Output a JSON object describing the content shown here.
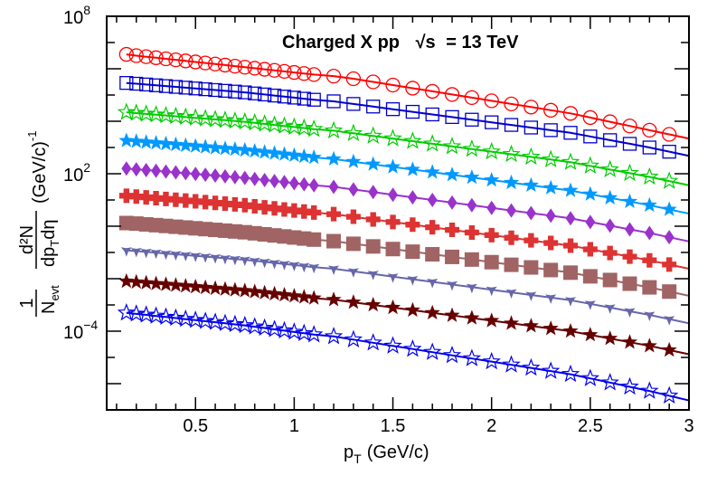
{
  "chart_data": {
    "type": "scatter",
    "title": "Charged X pp  √s = 13 TeV",
    "title_prefix": "Charged X pp",
    "title_sqrt": "√s",
    "title_suffix": "= 13 TeV",
    "xlabel": "p_T (GeV/c)",
    "xlabel_main": "p",
    "xlabel_sub": "T",
    "xlabel_unit": "(GeV/c)",
    "ylabel_parts": {
      "frac_num": "1",
      "frac_den_main": "N",
      "frac_den_sub": "evt",
      "d2N": "d²N",
      "dpt": "dp",
      "dpt_sub": "T",
      "deta": "dη",
      "unit": "(GeV/c)",
      "unit_exp": "-1"
    },
    "xlim": [
      0.05,
      3.0
    ],
    "ylim_log10": [
      -7,
      8
    ],
    "y_scale": "log",
    "grid": false,
    "x_ticks": [
      "0.5",
      "1",
      "1.5",
      "2",
      "2.5",
      "3"
    ],
    "y_ticks": [
      {
        "base": "10",
        "exp": "8"
      },
      {
        "base": "10",
        "exp": "2"
      },
      {
        "base": "10",
        "exp": "−4"
      }
    ],
    "series": [
      {
        "color": "#ff0000",
        "marker": "open-circle",
        "log10_y": [
          6.55,
          6.5,
          6.46,
          6.42,
          6.38,
          6.34,
          6.3,
          6.26,
          6.22,
          6.18,
          6.14,
          6.1,
          6.06,
          6.02,
          5.98,
          5.94,
          5.9,
          5.86,
          5.82,
          5.78,
          5.72,
          5.62,
          5.5,
          5.38,
          5.26,
          5.14,
          5.02,
          4.9,
          4.78,
          4.66,
          4.54,
          4.42,
          4.3,
          4.14,
          3.98,
          3.82,
          3.66,
          3.5
        ]
      },
      {
        "color": "#0000cc",
        "marker": "open-square",
        "log10_y": [
          5.46,
          5.43,
          5.4,
          5.37,
          5.34,
          5.31,
          5.28,
          5.25,
          5.22,
          5.19,
          5.16,
          5.13,
          5.1,
          5.06,
          5.02,
          4.98,
          4.94,
          4.9,
          4.86,
          4.82,
          4.76,
          4.66,
          4.56,
          4.46,
          4.36,
          4.26,
          4.16,
          4.06,
          3.96,
          3.86,
          3.76,
          3.66,
          3.56,
          3.42,
          3.28,
          3.14,
          3.0,
          2.84
        ]
      },
      {
        "color": "#00cc00",
        "marker": "open-star",
        "log10_y": [
          4.34,
          4.31,
          4.28,
          4.25,
          4.22,
          4.19,
          4.16,
          4.13,
          4.1,
          4.07,
          4.04,
          4.01,
          3.98,
          3.94,
          3.9,
          3.86,
          3.82,
          3.78,
          3.74,
          3.7,
          3.64,
          3.54,
          3.44,
          3.34,
          3.24,
          3.14,
          3.04,
          2.94,
          2.84,
          2.74,
          2.64,
          2.54,
          2.44,
          2.3,
          2.16,
          2.02,
          1.88,
          1.72
        ]
      },
      {
        "color": "#0099ff",
        "marker": "filled-star",
        "log10_y": [
          3.26,
          3.23,
          3.2,
          3.17,
          3.14,
          3.11,
          3.08,
          3.05,
          3.02,
          2.99,
          2.96,
          2.93,
          2.9,
          2.86,
          2.82,
          2.78,
          2.74,
          2.7,
          2.66,
          2.62,
          2.56,
          2.46,
          2.36,
          2.26,
          2.16,
          2.06,
          1.96,
          1.86,
          1.76,
          1.66,
          1.56,
          1.46,
          1.36,
          1.22,
          1.08,
          0.94,
          0.8,
          0.64
        ]
      },
      {
        "color": "#9933cc",
        "marker": "filled-diamond",
        "log10_y": [
          2.2,
          2.17,
          2.14,
          2.11,
          2.08,
          2.05,
          2.02,
          1.99,
          1.96,
          1.93,
          1.9,
          1.87,
          1.84,
          1.8,
          1.76,
          1.72,
          1.68,
          1.64,
          1.6,
          1.56,
          1.5,
          1.4,
          1.3,
          1.2,
          1.1,
          1.0,
          0.9,
          0.8,
          0.7,
          0.6,
          0.5,
          0.4,
          0.3,
          0.16,
          0.02,
          -0.12,
          -0.26,
          -0.42
        ]
      },
      {
        "color": "#dd3333",
        "marker": "filled-cross",
        "log10_y": [
          1.16,
          1.13,
          1.1,
          1.07,
          1.04,
          1.01,
          0.98,
          0.95,
          0.92,
          0.89,
          0.86,
          0.83,
          0.8,
          0.76,
          0.72,
          0.68,
          0.64,
          0.6,
          0.56,
          0.52,
          0.46,
          0.36,
          0.26,
          0.16,
          0.06,
          -0.04,
          -0.14,
          -0.24,
          -0.34,
          -0.44,
          -0.54,
          -0.64,
          -0.74,
          -0.88,
          -1.02,
          -1.16,
          -1.3,
          -1.46
        ]
      },
      {
        "color": "#a06464",
        "marker": "filled-square",
        "log10_y": [
          0.12,
          0.1,
          0.07,
          0.04,
          0.01,
          -0.02,
          -0.05,
          -0.08,
          -0.11,
          -0.14,
          -0.17,
          -0.2,
          -0.23,
          -0.27,
          -0.31,
          -0.35,
          -0.39,
          -0.43,
          -0.47,
          -0.51,
          -0.57,
          -0.67,
          -0.77,
          -0.87,
          -0.97,
          -1.07,
          -1.17,
          -1.27,
          -1.37,
          -1.47,
          -1.57,
          -1.67,
          -1.77,
          -1.91,
          -2.05,
          -2.19,
          -2.33,
          -2.49
        ]
      },
      {
        "color": "#6666aa",
        "marker": "filled-triangle",
        "log10_y": [
          -0.92,
          -0.95,
          -0.98,
          -1.01,
          -1.04,
          -1.07,
          -1.1,
          -1.13,
          -1.16,
          -1.19,
          -1.22,
          -1.25,
          -1.28,
          -1.32,
          -1.36,
          -1.4,
          -1.44,
          -1.48,
          -1.52,
          -1.56,
          -1.62,
          -1.72,
          -1.82,
          -1.92,
          -2.02,
          -2.12,
          -2.22,
          -2.32,
          -2.42,
          -2.52,
          -2.62,
          -2.72,
          -2.82,
          -2.96,
          -3.1,
          -3.24,
          -3.38,
          -3.54
        ]
      },
      {
        "color": "#660000",
        "marker": "filled-star",
        "log10_y": [
          -2.1,
          -2.13,
          -2.16,
          -2.19,
          -2.22,
          -2.25,
          -2.28,
          -2.31,
          -2.34,
          -2.37,
          -2.4,
          -2.43,
          -2.46,
          -2.5,
          -2.54,
          -2.58,
          -2.62,
          -2.66,
          -2.7,
          -2.74,
          -2.8,
          -2.9,
          -3.0,
          -3.1,
          -3.2,
          -3.3,
          -3.4,
          -3.5,
          -3.6,
          -3.7,
          -3.8,
          -3.9,
          -4.0,
          -4.14,
          -4.28,
          -4.42,
          -4.56,
          -4.72
        ]
      },
      {
        "color": "#0000ee",
        "marker": "open-star",
        "log10_y": [
          -3.3,
          -3.34,
          -3.38,
          -3.42,
          -3.46,
          -3.5,
          -3.54,
          -3.58,
          -3.62,
          -3.66,
          -3.7,
          -3.74,
          -3.78,
          -3.83,
          -3.88,
          -3.93,
          -3.98,
          -4.03,
          -4.08,
          -4.13,
          -4.2,
          -4.32,
          -4.44,
          -4.56,
          -4.68,
          -4.8,
          -4.92,
          -5.04,
          -5.16,
          -5.28,
          -5.4,
          -5.52,
          -5.64,
          -5.8,
          -5.96,
          -6.12,
          -6.28,
          -6.46
        ]
      }
    ],
    "x": [
      0.15,
      0.2,
      0.25,
      0.3,
      0.35,
      0.4,
      0.45,
      0.5,
      0.55,
      0.6,
      0.65,
      0.7,
      0.75,
      0.8,
      0.85,
      0.9,
      0.95,
      1.0,
      1.05,
      1.1,
      1.2,
      1.3,
      1.4,
      1.5,
      1.6,
      1.7,
      1.8,
      1.9,
      2.0,
      2.1,
      2.2,
      2.3,
      2.4,
      2.5,
      2.6,
      2.7,
      2.8,
      2.9
    ]
  }
}
